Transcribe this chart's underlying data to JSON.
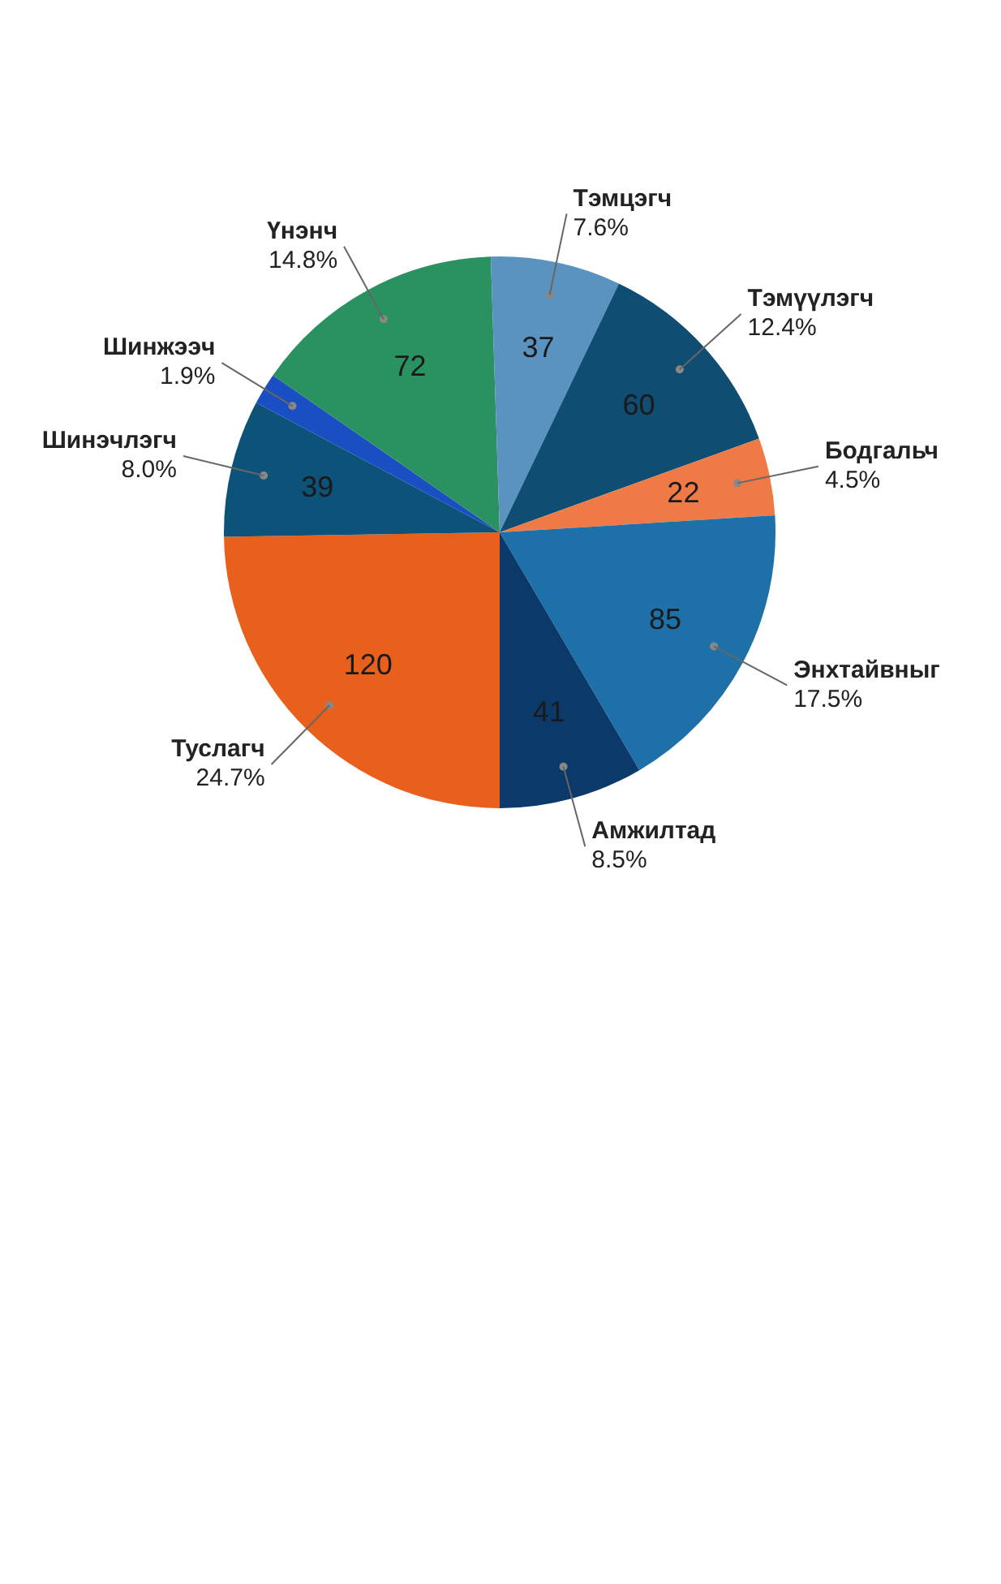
{
  "chart_data": {
    "type": "pie",
    "categories": [
      "Туслагч",
      "Шинэчлэгч",
      "Шинжээч",
      "Үнэнч",
      "Тэмцэгч",
      "Тэмүүлэгч",
      "Бодгальч",
      "Энхтайвныг",
      "Амжилтад"
    ],
    "values": [
      120,
      39,
      9,
      72,
      37,
      60,
      22,
      85,
      41
    ],
    "value_labels": [
      "120",
      "39",
      null,
      "72",
      "37",
      "60",
      "22",
      "85",
      "41"
    ],
    "colors": [
      "#e8601c",
      "#0d5279",
      "#1a4fc4",
      "#2a9160",
      "#5b93c0",
      "#0f4e72",
      "#f07a45",
      "#1e70a8",
      "#0b3a6a"
    ],
    "annotations": [
      "24.7%",
      "8.0%",
      "1.9%",
      "14.8%",
      "7.6%",
      "12.4%",
      "4.5%",
      "17.5%",
      "8.5%"
    ]
  }
}
